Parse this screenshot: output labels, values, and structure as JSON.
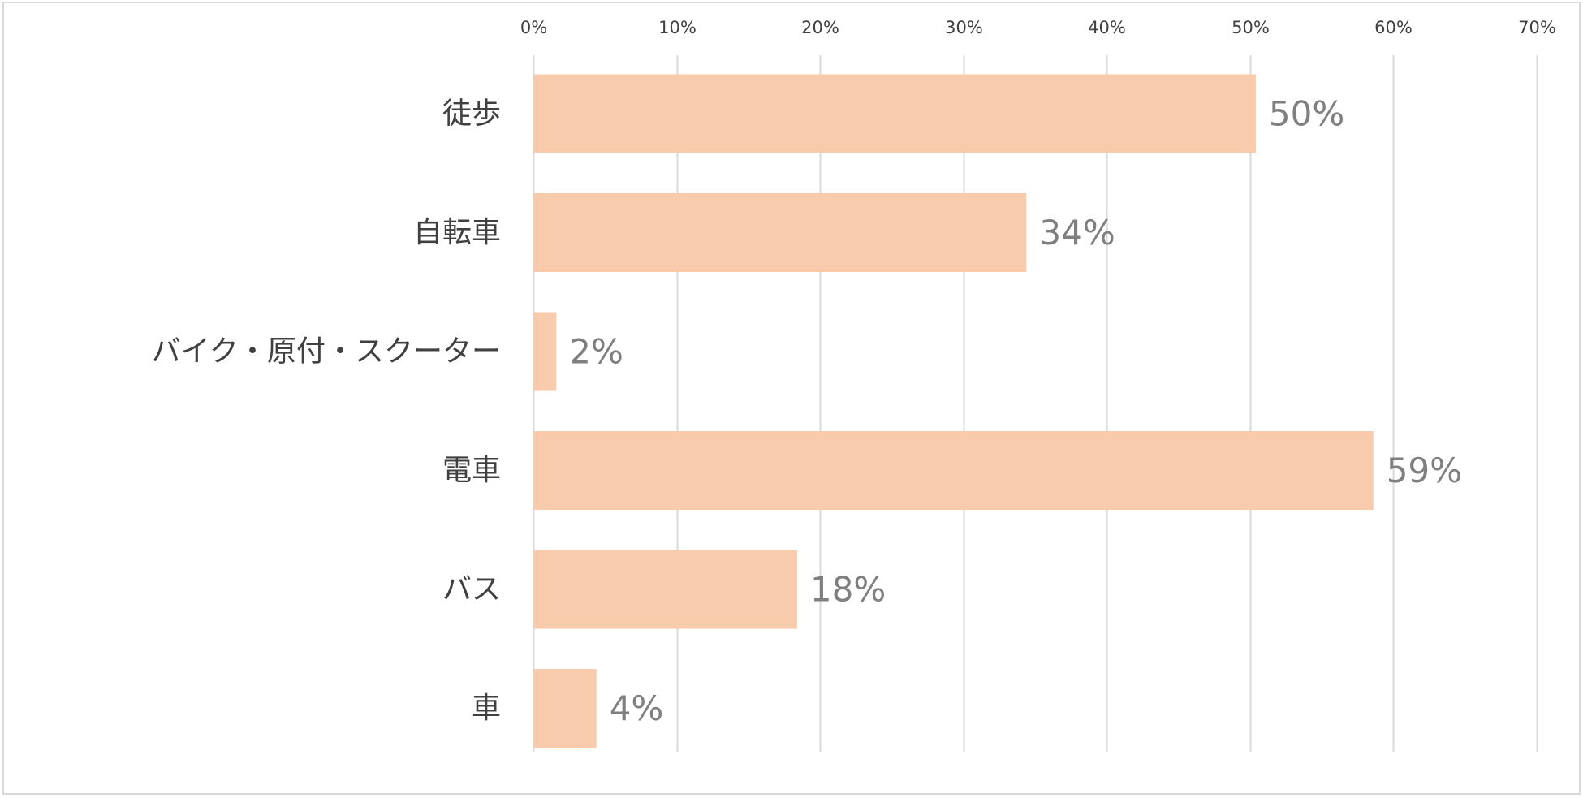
{
  "chart_data": {
    "type": "bar",
    "orientation": "horizontal",
    "categories": [
      "徒歩",
      "自転車",
      "バイク・原付・スクーター",
      "電車",
      "バス",
      "車"
    ],
    "values": [
      50.4,
      34.4,
      1.6,
      58.6,
      18.4,
      4.4
    ],
    "data_labels": [
      "50%",
      "34%",
      "2%",
      "59%",
      "18%",
      "4%"
    ],
    "xlim": [
      0,
      70
    ],
    "tick_values": [
      0,
      10,
      20,
      30,
      40,
      50,
      60,
      70
    ],
    "tick_labels": [
      "0%",
      "10%",
      "20%",
      "30%",
      "40%",
      "50%",
      "60%",
      "70%"
    ],
    "axis_position": "top",
    "grid": true,
    "bar_color": "#f8cbad",
    "grid_color": "#d9d9d9",
    "title": "",
    "xlabel": "",
    "ylabel": ""
  }
}
